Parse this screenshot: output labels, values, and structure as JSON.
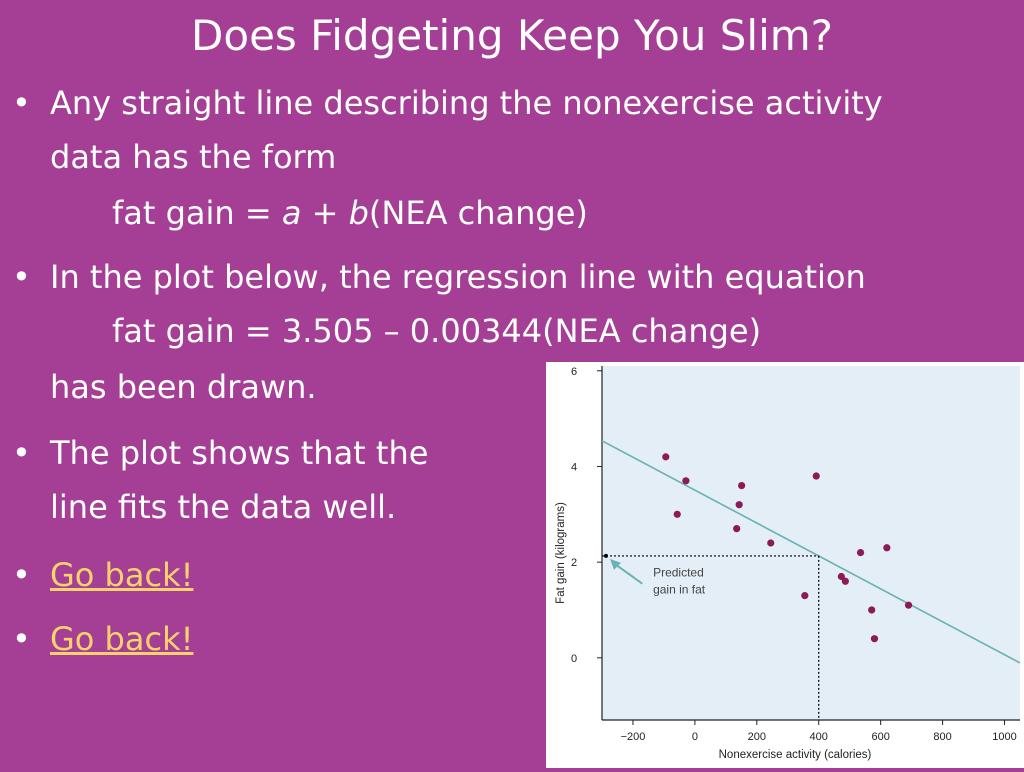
{
  "slide": {
    "title": "Does Fidgeting Keep You Slim?",
    "bullet_char": "•",
    "bullets": [
      {
        "line1": "Any straight line describing the nonexercise activity",
        "line2": "data has the form",
        "formula_prefix": "fat gain = ",
        "formula_a": "a",
        "formula_plus": " + ",
        "formula_b": "b",
        "formula_suffix": "(NEA change)"
      },
      {
        "line1": "In the plot below, the regression line with equation",
        "line2": "fat gain = 3.505 – 0.00344(NEA change)",
        "line3": "has been drawn."
      },
      {
        "line1": "The plot shows that the",
        "line2": "line fits the data well."
      },
      {
        "link": "Go back!"
      },
      {
        "link": "Go back!"
      }
    ]
  },
  "chart_data": {
    "type": "scatter",
    "xlabel": "Nonexercise activity (calories)",
    "ylabel": "Fat gain (kilograms)",
    "xlim": [
      -300,
      1050
    ],
    "ylim": [
      -1.3,
      6.1
    ],
    "xticks": [
      -200,
      0,
      200,
      400,
      600,
      800,
      1000
    ],
    "xtick_labels": [
      "−200",
      "0",
      "200",
      "400",
      "600",
      "800",
      "1000"
    ],
    "yticks": [
      0,
      2,
      4,
      6
    ],
    "ytick_labels": [
      "0",
      "2",
      "4",
      "6"
    ],
    "grid": false,
    "points": [
      {
        "x": -94,
        "y": 4.2
      },
      {
        "x": -57,
        "y": 3.0
      },
      {
        "x": -29,
        "y": 3.7
      },
      {
        "x": 135,
        "y": 2.7
      },
      {
        "x": 143,
        "y": 3.2
      },
      {
        "x": 151,
        "y": 3.6
      },
      {
        "x": 245,
        "y": 2.4
      },
      {
        "x": 355,
        "y": 1.3
      },
      {
        "x": 392,
        "y": 3.8
      },
      {
        "x": 473,
        "y": 1.7
      },
      {
        "x": 486,
        "y": 1.6
      },
      {
        "x": 535,
        "y": 2.2
      },
      {
        "x": 571,
        "y": 1.0
      },
      {
        "x": 580,
        "y": 0.4
      },
      {
        "x": 620,
        "y": 2.3
      },
      {
        "x": 690,
        "y": 1.1
      }
    ],
    "regression": {
      "intercept": 3.505,
      "slope": -0.00344
    },
    "prediction": {
      "x": 400,
      "y": 2.13
    },
    "annotation": [
      "Predicted",
      "gain in fat"
    ],
    "colors": {
      "background": "#e4eef7",
      "line": "#6ab3b3",
      "points": "#8c1a57",
      "axis": "#222222",
      "annotation": "#444444"
    }
  }
}
